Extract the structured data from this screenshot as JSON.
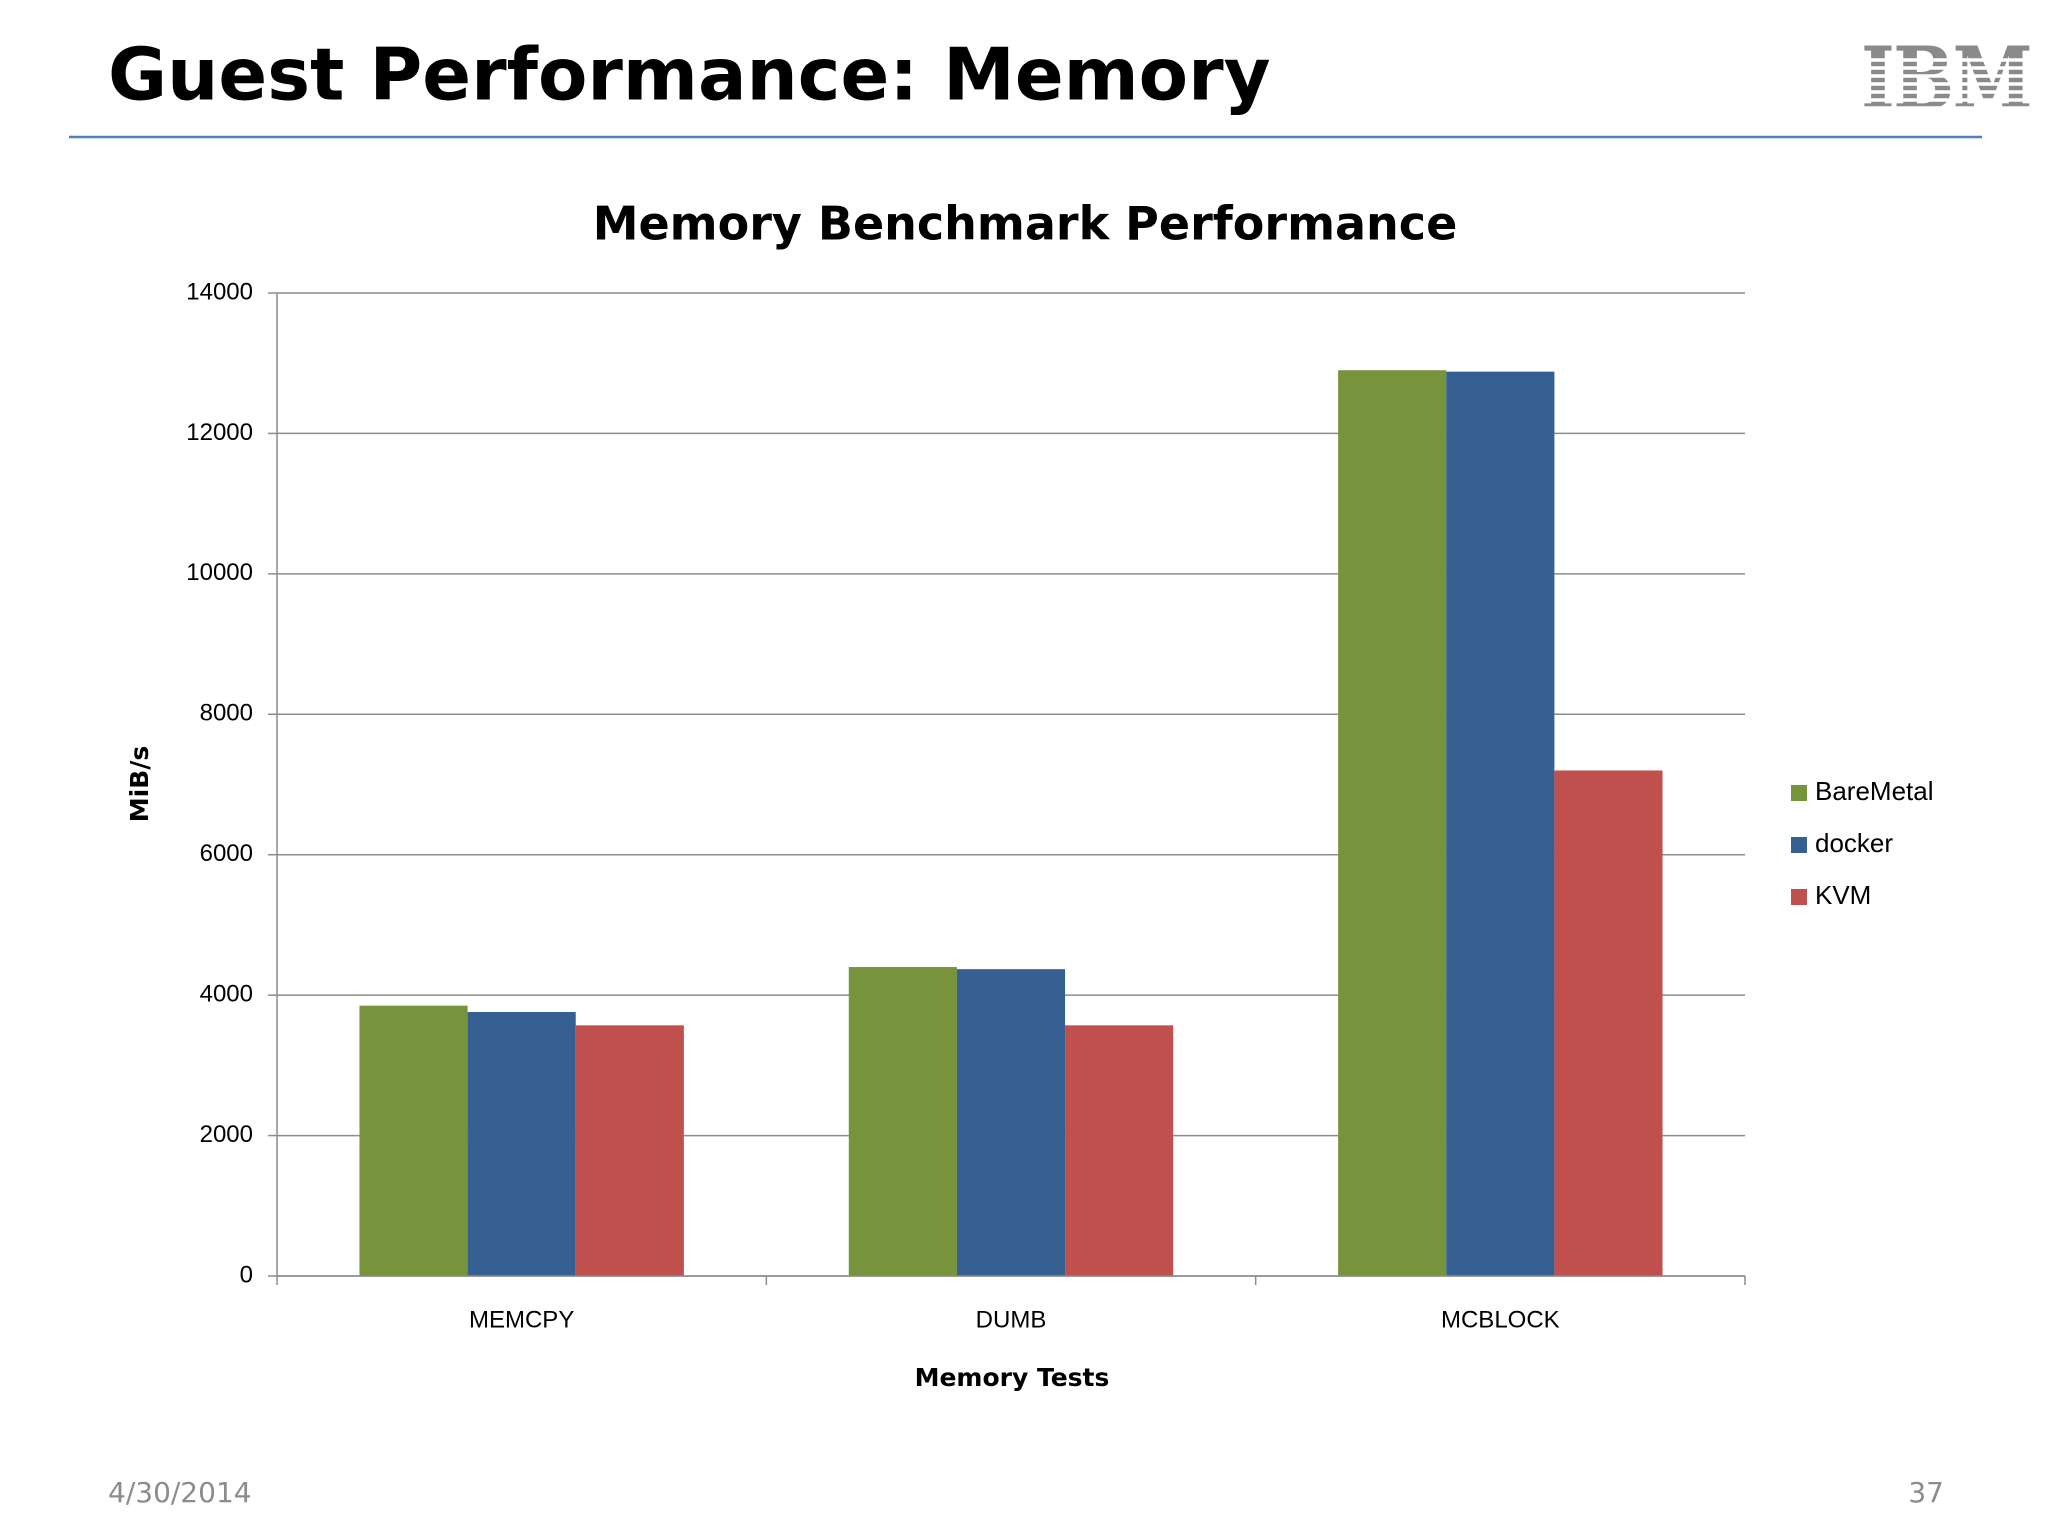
{
  "slide_title": "Guest Performance: Memory",
  "logo": "IBM",
  "footer": {
    "date": "4/30/2014",
    "page": "37"
  },
  "chart_data": {
    "type": "bar",
    "title": "Memory Benchmark Performance",
    "x_label": "Memory Tests",
    "y_label": "MiB/s",
    "categories": [
      "MEMCPY",
      "DUMB",
      "MCBLOCK"
    ],
    "series": [
      {
        "name": "BareMetal",
        "color": "#77933c",
        "values": [
          3850,
          4400,
          12900
        ]
      },
      {
        "name": "docker",
        "color": "#376092",
        "values": [
          3760,
          4370,
          12880
        ]
      },
      {
        "name": "KVM",
        "color": "#c0504d",
        "values": [
          3570,
          3570,
          7200
        ]
      }
    ],
    "ylim": [
      0,
      14000
    ],
    "yticks": [
      0,
      2000,
      4000,
      6000,
      8000,
      10000,
      12000,
      14000
    ],
    "grid": true,
    "legend": "right"
  }
}
